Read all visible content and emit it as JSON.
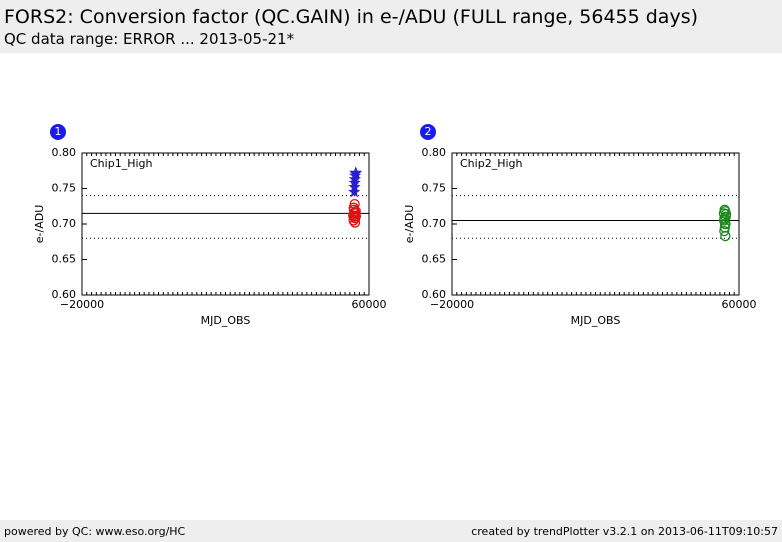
{
  "header": {
    "title": "FORS2: Conversion factor (QC.GAIN) in e-/ADU (FULL range, 56455 days)",
    "subtitle": "QC data range: ERROR ... 2013-05-21*"
  },
  "footer": {
    "left": "powered by QC: www.eso.org/HC",
    "right": "created by trendPlotter v3.2.1 on 2013-06-11T09:10:57"
  },
  "chart_data": [
    {
      "type": "scatter",
      "panel_number": "1",
      "title": "Chip1_High",
      "xlabel": "MJD_OBS",
      "ylabel": "e-/ADU",
      "xlim": [
        -20000,
        60000
      ],
      "xticks": [
        {
          "value": -20000,
          "label": "−20000"
        },
        60000
      ],
      "ylim": [
        0.6,
        0.8
      ],
      "yticks": [
        {
          "value": 0.6,
          "label": "0.60"
        },
        {
          "value": 0.65,
          "label": "0.65"
        },
        {
          "value": 0.7,
          "label": "0.70"
        },
        {
          "value": 0.75,
          "label": "0.75"
        },
        {
          "value": 0.8,
          "label": "0.80"
        }
      ],
      "reference_line": 0.715,
      "limit_lines": [
        0.74,
        0.68
      ],
      "series": [
        {
          "marker": "star",
          "color": "#2a1fcc",
          "x": [
            55900,
            55950,
            56000,
            56050,
            56150,
            56250,
            56350
          ],
          "values": [
            0.745,
            0.752,
            0.758,
            0.763,
            0.768,
            0.771,
            0.772
          ]
        },
        {
          "marker": "circle",
          "color": "#dd1111",
          "x": [
            55600,
            55700,
            55800,
            55900,
            56000,
            56100,
            56200,
            56300,
            55750,
            55950,
            56150,
            56350
          ],
          "values": [
            0.712,
            0.705,
            0.72,
            0.71,
            0.728,
            0.702,
            0.715,
            0.718,
            0.723,
            0.716,
            0.708,
            0.711
          ]
        }
      ]
    },
    {
      "type": "scatter",
      "panel_number": "2",
      "title": "Chip2_High",
      "xlabel": "MJD_OBS",
      "ylabel": "e-/ADU",
      "xlim": [
        -20000,
        60000
      ],
      "xticks": [
        {
          "value": -20000,
          "label": "−20000"
        },
        60000
      ],
      "ylim": [
        0.6,
        0.8
      ],
      "yticks": [
        {
          "value": 0.6,
          "label": "0.60"
        },
        {
          "value": 0.65,
          "label": "0.65"
        },
        {
          "value": 0.7,
          "label": "0.70"
        },
        {
          "value": 0.75,
          "label": "0.75"
        },
        {
          "value": 0.8,
          "label": "0.80"
        }
      ],
      "reference_line": 0.705,
      "limit_lines": [
        0.74,
        0.68
      ],
      "series": [
        {
          "marker": "circle",
          "color": "#1a8a1a",
          "x": [
            55800,
            55900,
            56000,
            56100,
            56200,
            56300,
            56400,
            55850,
            56050,
            56250,
            56150,
            55950
          ],
          "values": [
            0.715,
            0.69,
            0.72,
            0.7,
            0.683,
            0.71,
            0.714,
            0.705,
            0.695,
            0.7,
            0.718,
            0.708
          ]
        }
      ]
    }
  ]
}
